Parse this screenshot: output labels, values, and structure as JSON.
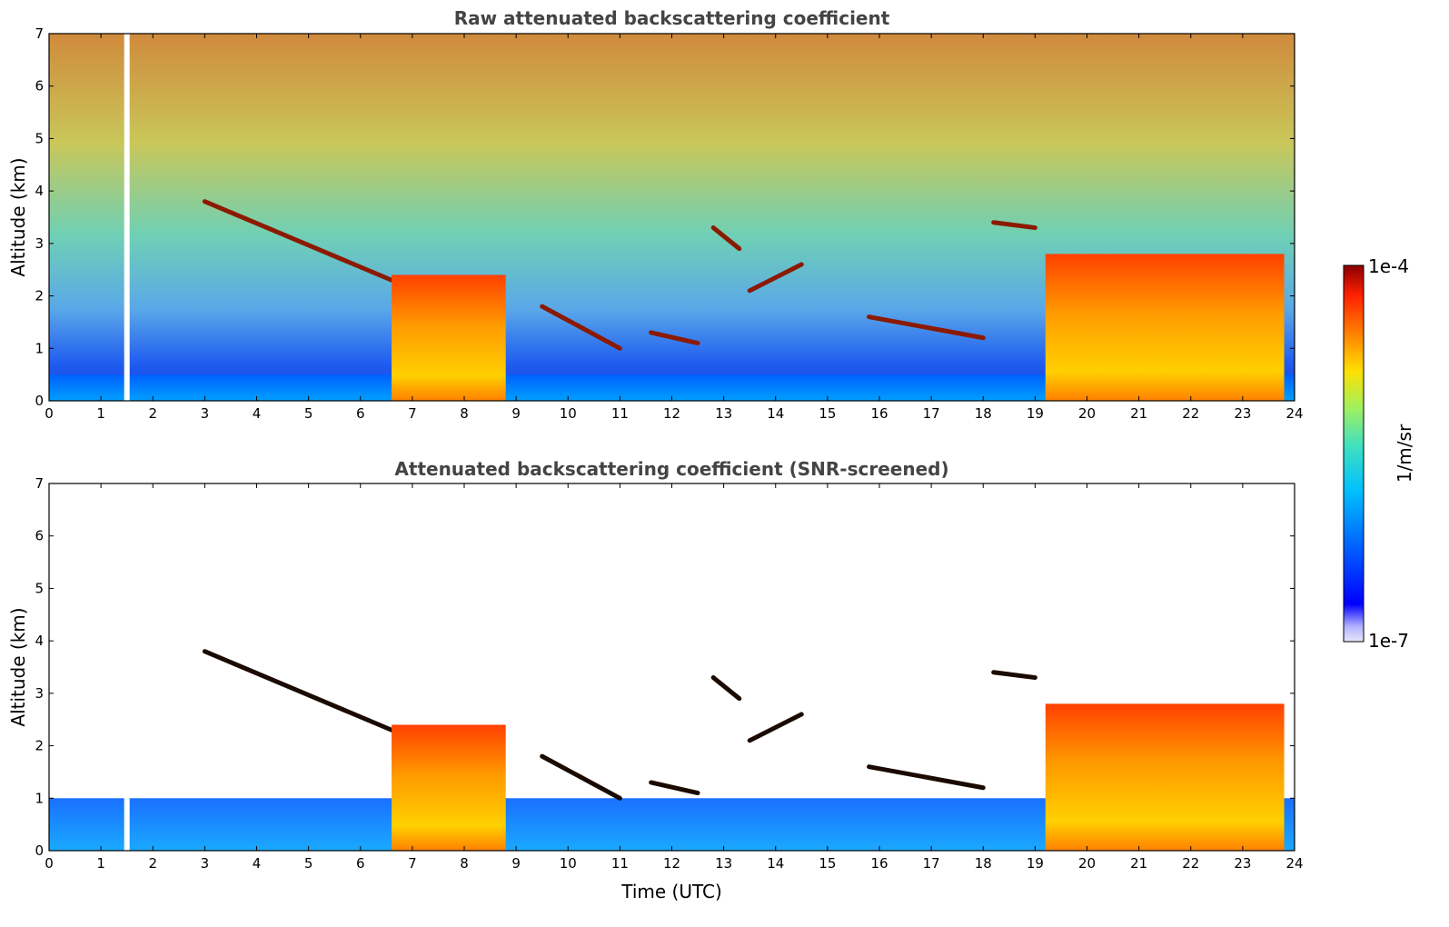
{
  "chart_data": [
    {
      "type": "heatmap",
      "title": "Raw attenuated backscattering coefficient",
      "xlabel": "",
      "ylabel": "Altitude (km)",
      "xlim": [
        0,
        24
      ],
      "ylim": [
        0,
        7
      ],
      "x_ticks": [
        "0",
        "1",
        "2",
        "3",
        "4",
        "5",
        "6",
        "7",
        "8",
        "9",
        "10",
        "11",
        "12",
        "13",
        "14",
        "15",
        "16",
        "17",
        "18",
        "19",
        "20",
        "21",
        "22",
        "23",
        "24"
      ],
      "y_ticks": [
        "0",
        "1",
        "2",
        "3",
        "4",
        "5",
        "6",
        "7"
      ],
      "layers": [
        {
          "feature": "boundary-layer aerosol",
          "x": [
            0,
            24
          ],
          "top_km": 0.5
        },
        {
          "feature": "elevated cloud layer",
          "x": [
            3.0,
            6.6
          ],
          "alt_km": [
            3.8,
            2.3
          ]
        },
        {
          "feature": "low cloud layer",
          "x": [
            6.6,
            8.8
          ],
          "top_km": 2.4
        },
        {
          "feature": "cloud layer",
          "x": [
            9.5,
            11.0
          ],
          "alt_km": [
            1.8,
            1.0
          ]
        },
        {
          "feature": "cloud layer",
          "x": [
            11.6,
            12.5
          ],
          "alt_km": [
            1.3,
            1.1
          ]
        },
        {
          "feature": "cloud layer",
          "x": [
            12.8,
            13.3
          ],
          "alt_km": [
            3.3,
            2.9
          ]
        },
        {
          "feature": "cloud layer",
          "x": [
            13.5,
            14.5
          ],
          "alt_km": [
            2.1,
            2.6
          ]
        },
        {
          "feature": "cloud layer",
          "x": [
            15.8,
            18.0
          ],
          "alt_km": [
            1.6,
            1.2
          ]
        },
        {
          "feature": "cloud layer",
          "x": [
            18.2,
            19.0
          ],
          "alt_km": [
            3.4,
            3.3
          ]
        },
        {
          "feature": "low cloud layer",
          "x": [
            19.2,
            23.8
          ],
          "top_km": 2.8
        }
      ],
      "missing_data_time": [
        1.5
      ]
    },
    {
      "type": "heatmap",
      "title": "Attenuated backscattering coefficient (SNR-screened)",
      "xlabel": "Time (UTC)",
      "ylabel": "Altitude (km)",
      "xlim": [
        0,
        24
      ],
      "ylim": [
        0,
        7
      ],
      "x_ticks": [
        "0",
        "1",
        "2",
        "3",
        "4",
        "5",
        "6",
        "7",
        "8",
        "9",
        "10",
        "11",
        "12",
        "13",
        "14",
        "15",
        "16",
        "17",
        "18",
        "19",
        "20",
        "21",
        "22",
        "23",
        "24"
      ],
      "y_ticks": [
        "0",
        "1",
        "2",
        "3",
        "4",
        "5",
        "6",
        "7"
      ]
    }
  ],
  "colorbar": {
    "label": "1/m/sr",
    "max_label": "1e-4",
    "min_label": "1e-7",
    "scale": "log",
    "colormap": [
      "#e6e6fa",
      "#b3b3ff",
      "#0000ff",
      "#0060ff",
      "#00c0ff",
      "#40e0c0",
      "#a0f060",
      "#ffe000",
      "#ff8000",
      "#ff2000",
      "#8b0000"
    ]
  }
}
